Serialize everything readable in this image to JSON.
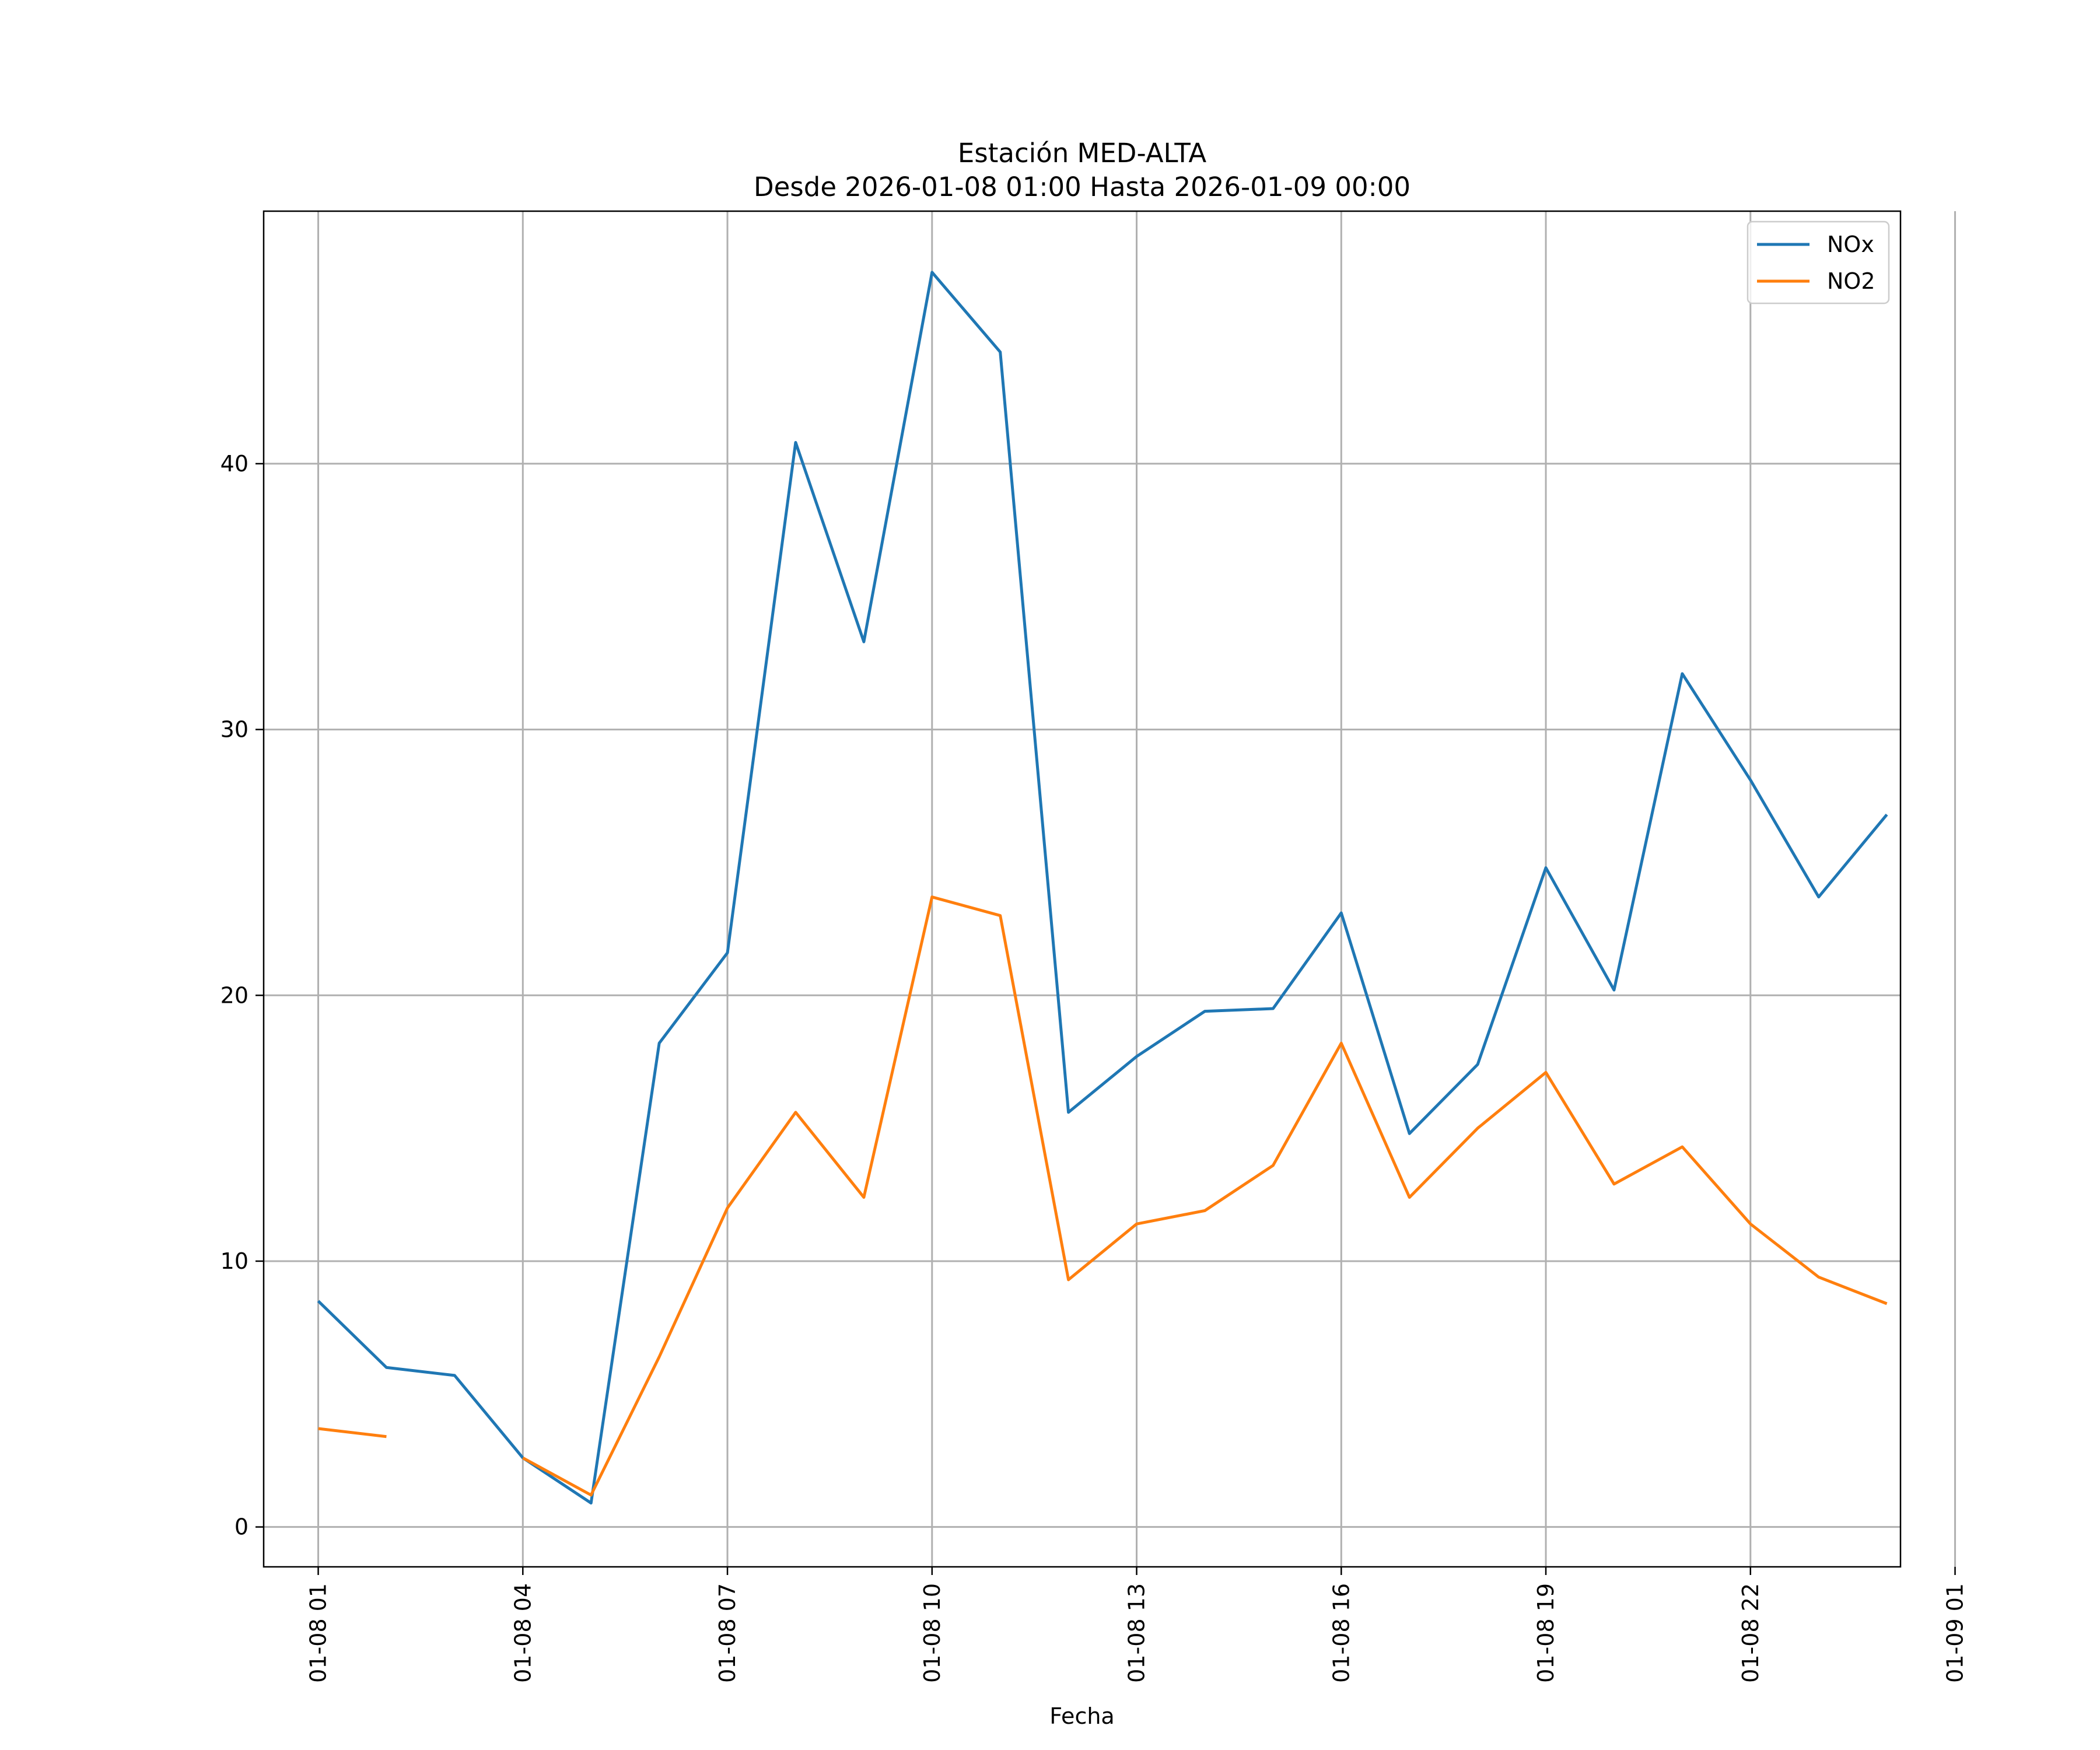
{
  "chart_data": {
    "type": "line",
    "title_line1": "Estación MED-ALTA",
    "title_line2": "Desde 2026-01-08 01:00 Hasta 2026-01-09 00:00",
    "xlabel": "Fecha",
    "ylabel": "",
    "x_unit": "hours since 2026-01-08 00:00",
    "xlim": [
      0.2,
      24.2
    ],
    "ylim": [
      -1.5,
      49.5
    ],
    "grid": true,
    "legend_location": "top-right",
    "x": [
      1,
      2,
      3,
      4,
      5,
      6,
      7,
      8,
      9,
      10,
      11,
      12,
      13,
      14,
      15,
      16,
      17,
      18,
      19,
      20,
      21,
      22,
      23,
      24
    ],
    "x_ticks": [
      {
        "value": 1,
        "label": "01-08 01"
      },
      {
        "value": 4,
        "label": "01-08 04"
      },
      {
        "value": 7,
        "label": "01-08 07"
      },
      {
        "value": 10,
        "label": "01-08 10"
      },
      {
        "value": 13,
        "label": "01-08 13"
      },
      {
        "value": 16,
        "label": "01-08 16"
      },
      {
        "value": 19,
        "label": "01-08 19"
      },
      {
        "value": 22,
        "label": "01-08 22"
      },
      {
        "value": 25,
        "label": "01-09 01"
      }
    ],
    "y_ticks": [
      {
        "value": 0,
        "label": "0"
      },
      {
        "value": 10,
        "label": "10"
      },
      {
        "value": 20,
        "label": "20"
      },
      {
        "value": 30,
        "label": "30"
      },
      {
        "value": 40,
        "label": "40"
      }
    ],
    "series": [
      {
        "name": "NOx",
        "color": "#1f77b4",
        "values": [
          8.5,
          6.0,
          5.7,
          2.6,
          0.9,
          18.2,
          21.6,
          40.8,
          33.3,
          47.2,
          44.2,
          15.6,
          17.7,
          19.4,
          19.5,
          23.1,
          14.8,
          17.4,
          24.8,
          20.2,
          32.1,
          28.1,
          23.7,
          26.8
        ]
      },
      {
        "name": "NO2",
        "color": "#ff7f0e",
        "values": [
          3.7,
          3.4,
          null,
          2.6,
          1.2,
          6.4,
          12.0,
          15.6,
          12.4,
          23.7,
          23.0,
          9.3,
          11.4,
          11.9,
          13.6,
          18.2,
          12.4,
          15.0,
          17.1,
          12.9,
          14.3,
          11.4,
          9.4,
          8.4
        ]
      }
    ]
  }
}
